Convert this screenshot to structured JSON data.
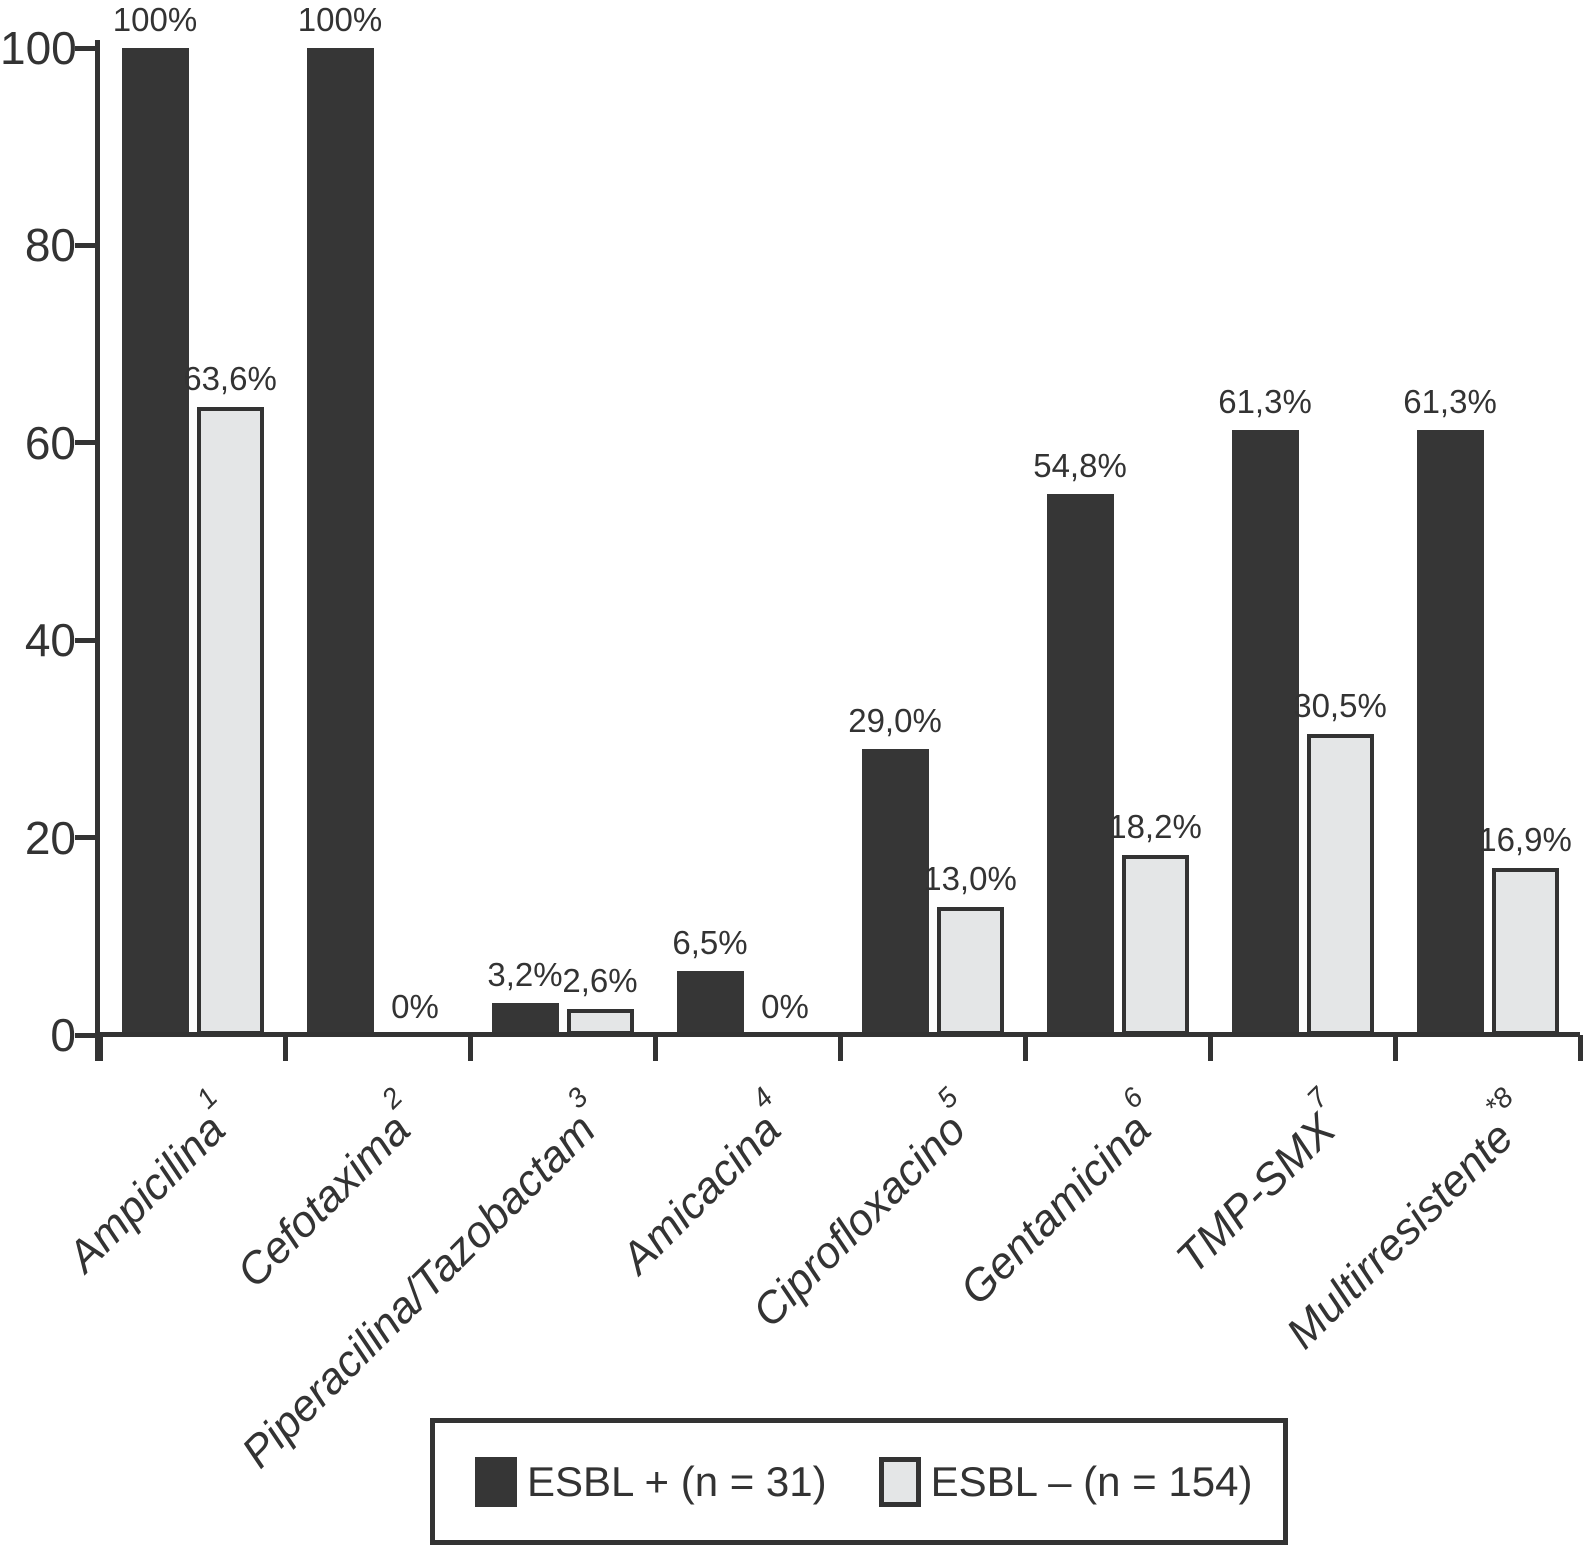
{
  "chart_data": {
    "type": "bar",
    "title": "",
    "xlabel": "",
    "ylabel": "",
    "ylim": [
      0,
      100
    ],
    "yticks": [
      0,
      20,
      40,
      60,
      80,
      100
    ],
    "grid": false,
    "legend_position": "bottom",
    "categories": [
      {
        "label": "Ampicilina",
        "sup": "1"
      },
      {
        "label": "Cefotaxima",
        "sup": "2"
      },
      {
        "label": "Piperacilina/Tazobactam",
        "sup": "3"
      },
      {
        "label": "Amicacina",
        "sup": "4"
      },
      {
        "label": "Ciprofloxacino",
        "sup": "5"
      },
      {
        "label": "Gentamicina",
        "sup": "6"
      },
      {
        "label": "TMP-SMX",
        "sup": "7"
      },
      {
        "label": "Multirresistente",
        "sup": "*8"
      }
    ],
    "series": [
      {
        "name": "ESBL + (n = 31)",
        "swatch": "dark",
        "color": "#363636",
        "values": [
          100,
          100,
          3.2,
          6.5,
          29.0,
          54.8,
          61.3,
          61.3
        ],
        "value_labels": [
          "100%",
          "100%",
          "3,2%",
          "6,5%",
          "29,0%",
          "54,8%",
          "61,3%",
          "61,3%"
        ]
      },
      {
        "name": "ESBL – (n = 154)",
        "swatch": "light",
        "color": "#e4e6e7",
        "border_color": "#333333",
        "values": [
          63.6,
          0,
          2.6,
          0,
          13.0,
          18.2,
          30.5,
          16.9
        ],
        "value_labels": [
          "63,6%",
          "0%",
          "2,6%",
          "0%",
          "13,0%",
          "18,2%",
          "30,5%",
          "16,9%"
        ]
      }
    ]
  },
  "colors": {
    "axis": "#333333",
    "text": "#333333",
    "background": "#ffffff",
    "dark_bar": "#363636",
    "light_bar_fill": "#e4e6e7",
    "light_bar_border": "#333333"
  }
}
